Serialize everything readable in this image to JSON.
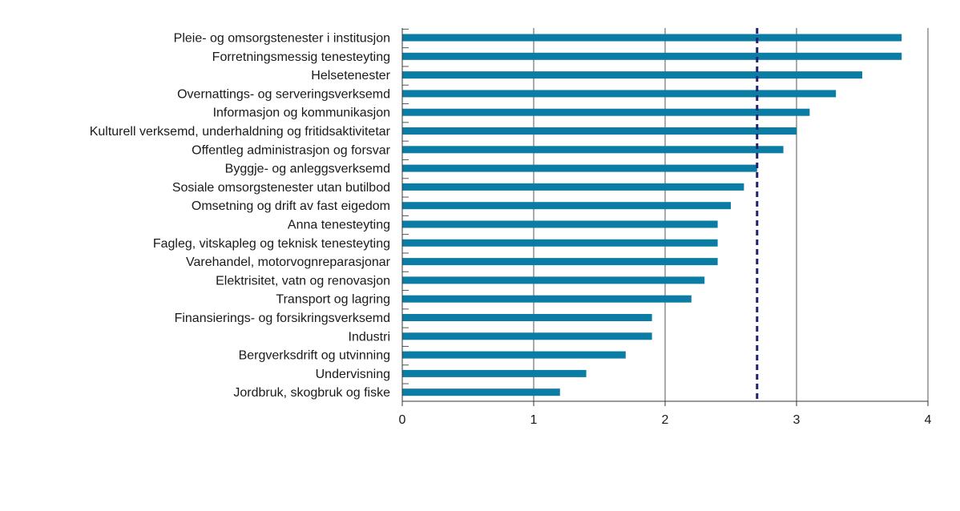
{
  "chart_data": {
    "type": "bar",
    "orientation": "horizontal",
    "title": "",
    "xlabel": "",
    "ylabel": "",
    "categories": [
      "Pleie- og omsorgstenester i institusjon",
      "Forretningsmessig tenesteyting",
      "Helsetenester",
      "Overnattings- og serveringsverksemd",
      "Informasjon og kommunikasjon",
      "Kulturell verksemd, underhaldning og fritidsaktivitetar",
      "Offentleg administrasjon og forsvar",
      "Byggje- og anleggsverksemd",
      "Sosiale omsorgstenester utan butilbod",
      "Omsetning og drift av fast eigedom",
      "Anna tenesteyting",
      "Fagleg, vitskapleg og teknisk tenesteyting",
      "Varehandel, motorvognreparasjonar",
      "Elektrisitet, vatn og renovasjon",
      "Transport og lagring",
      "Finansierings- og forsikringsverksemd",
      "Industri",
      "Bergverksdrift og utvinning",
      "Undervisning",
      "Jordbruk, skogbruk og fiske"
    ],
    "values": [
      3.8,
      3.8,
      3.5,
      3.3,
      3.1,
      3.0,
      2.9,
      2.7,
      2.6,
      2.5,
      2.4,
      2.4,
      2.4,
      2.3,
      2.2,
      1.9,
      1.9,
      1.7,
      1.4,
      1.2
    ],
    "xlim": [
      0,
      4
    ],
    "xticks": [
      "0",
      "1",
      "2",
      "3",
      "4"
    ],
    "reference_line": {
      "value": 2.7,
      "style": "dashed",
      "color": "#1f1f6e"
    },
    "grid": "vertical",
    "bar_color": "#0b7ca3",
    "legend": "none"
  }
}
